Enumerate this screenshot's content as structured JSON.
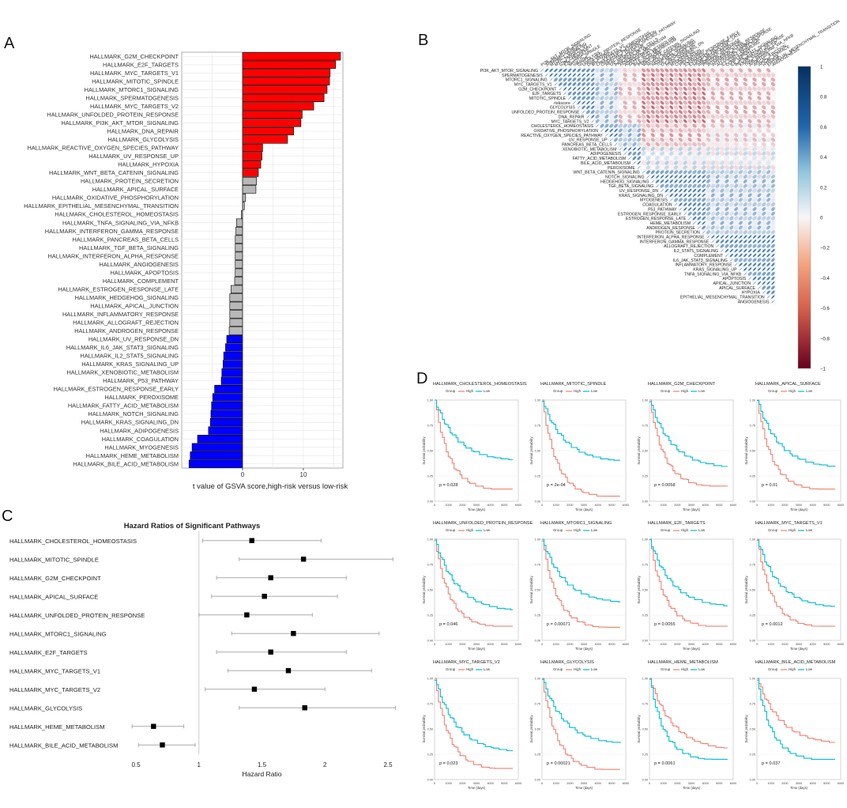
{
  "panel_letters": {
    "a": "A",
    "b": "B",
    "c": "C",
    "d": "D"
  },
  "colors": {
    "up": "#ff0000",
    "down": "#0000ff",
    "ns": "#b8b8b8",
    "grid": "#e6e6e6",
    "high": "#f08070",
    "low": "#00bcd4",
    "neg_corr": "#b2182b",
    "pos_corr": "#2166ac"
  },
  "chart_data": [
    {
      "id": "A",
      "type": "bar",
      "orientation": "horizontal",
      "xlabel": "t value of GSVA score,high-risk versus low-risk",
      "xlim": [
        -10,
        16.5
      ],
      "xticks": [
        0,
        10
      ],
      "categories": [
        "HALLMARK_G2M_CHECKPOINT",
        "HALLMARK_E2F_TARGETS",
        "HALLMARK_MYC_TARGETS_V1",
        "HALLMARK_MITOTIC_SPINDLE",
        "HALLMARK_MTORC1_SIGNALING",
        "HALLMARK_SPERMATOGENESIS",
        "HALLMARK_MYC_TARGETS_V2",
        "HALLMARK_UNFOLDED_PROTEIN_RESPONSE",
        "HALLMARK_PI3K_AKT_MTOR_SIGNALING",
        "HALLMARK_DNA_REPAIR",
        "HALLMARK_GLYCOLYSIS",
        "HALLMARK_REACTIVE_OXYGEN_SPECIES_PATHWAY",
        "HALLMARK_UV_RESPONSE_UP",
        "HALLMARK_HYPOXIA",
        "HALLMARK_WNT_BETA_CATENIN_SIGNALING",
        "HALLMARK_PROTEIN_SECRETION",
        "HALLMARK_APICAL_SURFACE",
        "HALLMARK_OXIDATIVE_PHOSPHORYLATION",
        "HALLMARK_EPITHELIAL_MESENCHYMAL_TRANSITION",
        "HALLMARK_CHOLESTEROL_HOMEOSTASIS",
        "HALLMARK_TNFA_SIGNALING_VIA_NFKB",
        "HALLMARK_INTERFERON_GAMMA_RESPONSE",
        "HALLMARK_PANCREAS_BETA_CELLS",
        "HALLMARK_TGF_BETA_SIGNALING",
        "HALLMARK_INTERFERON_ALPHA_RESPONSE",
        "HALLMARK_ANGIOGENESIS",
        "HALLMARK_APOPTOSIS",
        "HALLMARK_COMPLEMENT",
        "HALLMARK_ESTROGEN_RESPONSE_LATE",
        "HALLMARK_HEDGEHOG_SIGNALING",
        "HALLMARK_APICAL_JUNCTION",
        "HALLMARK_INFLAMMATORY_RESPONSE",
        "HALLMARK_ALLOGRAFT_REJECTION",
        "HALLMARK_ANDROGEN_RESPONSE",
        "HALLMARK_UV_RESPONSE_DN",
        "HALLMARK_IL6_JAK_STAT3_SIGNALING",
        "HALLMARK_IL2_STAT5_SIGNALING",
        "HALLMARK_KRAS_SIGNALING_UP",
        "HALLMARK_XENOBIOTIC_METABOLISM",
        "HALLMARK_P53_PATHWAY",
        "HALLMARK_ESTROGEN_RESPONSE_EARLY",
        "HALLMARK_PEROXISOME",
        "HALLMARK_FATTY_ACID_METABOLISM",
        "HALLMARK_NOTCH_SIGNALING",
        "HALLMARK_KRAS_SIGNALING_DN",
        "HALLMARK_ADIPOGENESIS",
        "HALLMARK_COAGULATION",
        "HALLMARK_MYOGENESIS",
        "HALLMARK_HEME_METABOLISM",
        "HALLMARK_BILE_ACID_METABOLISM"
      ],
      "values": [
        16.1,
        15.3,
        14.4,
        14.3,
        13.9,
        13.4,
        11.7,
        9.8,
        9.6,
        8.4,
        7.4,
        3.3,
        3.2,
        3.0,
        2.6,
        2.3,
        2.2,
        0.5,
        0.3,
        -0.2,
        -1.0,
        -1.1,
        -1.2,
        -1.2,
        -1.2,
        -1.2,
        -1.2,
        -1.3,
        -1.9,
        -2.1,
        -2.1,
        -2.1,
        -2.1,
        -2.2,
        -2.6,
        -2.8,
        -3.1,
        -3.2,
        -3.4,
        -3.5,
        -4.6,
        -4.9,
        -5.1,
        -5.2,
        -5.3,
        -5.6,
        -7.4,
        -8.3,
        -8.6,
        -8.8
      ],
      "groups": [
        "up",
        "up",
        "up",
        "up",
        "up",
        "up",
        "up",
        "up",
        "up",
        "up",
        "up",
        "up",
        "up",
        "up",
        "up",
        "ns",
        "ns",
        "ns",
        "ns",
        "ns",
        "ns",
        "ns",
        "ns",
        "ns",
        "ns",
        "ns",
        "ns",
        "ns",
        "ns",
        "ns",
        "ns",
        "ns",
        "ns",
        "ns",
        "down",
        "down",
        "down",
        "down",
        "down",
        "down",
        "down",
        "down",
        "down",
        "down",
        "down",
        "down",
        "down",
        "down",
        "down",
        "down"
      ]
    },
    {
      "id": "B",
      "type": "heatmap",
      "style": "correlation-ellipse-upper-triangle",
      "variables": [
        "PI3K_AKT_MTOR_SIGNALING",
        "SPERMATOGENESIS",
        "MTORC1_SIGNALING",
        "MYC_TARGETS_V1",
        "G2M_CHECKPOINT",
        "E2F_TARGETS",
        "MITOTIC_SPINDLE",
        "riskscore",
        "GLYCOLYSIS",
        "UNFOLDED_PROTEIN_RESPONSE",
        "DNA_REPAIR",
        "MYC_TARGETS_V2",
        "CHOLESTEROL_HOMEOSTASIS",
        "OXIDATIVE_PHOSPHORYLATION",
        "REACTIVE_OXYGEN_SPECIES_PATHWAY",
        "UV_RESPONSE_UP",
        "PANCREAS_BETA_CELLS",
        "XENOBIOTIC_METABOLISM",
        "ADIPOGENESIS",
        "FATTY_ACID_METABOLISM",
        "BILE_ACID_METABOLISM",
        "PEROXISOME",
        "WNT_BETA_CATENIN_SIGNALING",
        "NOTCH_SIGNALING",
        "HEDGEHOG_SIGNALING",
        "TGF_BETA_SIGNALING",
        "UV_RESPONSE_DN",
        "KRAS_SIGNALING_DN",
        "MYOGENESIS",
        "COAGULATION",
        "P53_PATHWAY",
        "ESTROGEN_RESPONSE_EARLY",
        "ESTROGEN_RESPONSE_LATE",
        "HEME_METABOLISM",
        "ANDROGEN_RESPONSE",
        "PROTEIN_SECRETION",
        "INTERFERON_ALPHA_RESPONSE",
        "INTERFERON_GAMMA_RESPONSE",
        "ALLOGRAFT_REJECTION",
        "IL2_STAT5_SIGNALING",
        "COMPLEMENT",
        "IL6_JAK_STAT3_SIGNALING",
        "INFLAMMATORY_RESPONSE",
        "KRAS_SIGNALING_UP",
        "TNFA_SIGNALING_VIA_NFKB",
        "APOPTOSIS",
        "APICAL_JUNCTION",
        "APICAL_SURFACE",
        "HYPOXIA",
        "EPITHELIAL_MESENCHYMAL_TRANSITION",
        "ANGIOGENESIS"
      ],
      "clusters": [
        0,
        0,
        0,
        0,
        0,
        0,
        0,
        0,
        0,
        0,
        0,
        0,
        1,
        1,
        1,
        1,
        1,
        2,
        2,
        2,
        2,
        2,
        3,
        3,
        3,
        3,
        3,
        3,
        3,
        3,
        3,
        3,
        3,
        3,
        3,
        3,
        4,
        4,
        4,
        4,
        4,
        4,
        4,
        4,
        4,
        4,
        4,
        4,
        4,
        4,
        4
      ],
      "colorbar_ticks": [
        "1",
        "0.8",
        "0.6",
        "0.4",
        "0.2",
        "0",
        "−0.2",
        "−0.4",
        "−0.6",
        "−0.8",
        "−1"
      ],
      "colorbar_range": [
        -1,
        1
      ]
    },
    {
      "id": "C",
      "type": "scatter",
      "subtype": "forest",
      "title": "Hazard Ratios of Significant Pathways",
      "xlabel": "Hazard Ratio",
      "xlim": [
        0.5,
        2.5
      ],
      "xticks": [
        "0.5",
        "1",
        "1.5",
        "2",
        "2.5"
      ],
      "reference": 1,
      "categories": [
        "HALLMARK_CHOLESTEROL_HOMEOSTASIS",
        "HALLMARK_MITOTIC_SPINDLE",
        "HALLMARK_G2M_CHECKPOINT",
        "HALLMARK_APICAL_SURFACE",
        "HALLMARK_UNFOLDED_PROTEIN_RESPONSE",
        "HALLMARK_MTORC1_SIGNALING",
        "HALLMARK_E2F_TARGETS",
        "HALLMARK_MYC_TARGETS_V1",
        "HALLMARK_MYC_TARGETS_V2",
        "HALLMARK_GLYCOLYSIS",
        "HALLMARK_HEME_METABOLISM",
        "HALLMARK_BILE_ACID_METABOLISM"
      ],
      "hr": [
        1.42,
        1.83,
        1.57,
        1.52,
        1.38,
        1.75,
        1.57,
        1.71,
        1.44,
        1.84,
        0.64,
        0.71
      ],
      "lower": [
        1.03,
        1.32,
        1.14,
        1.1,
        1.0,
        1.26,
        1.14,
        1.23,
        1.05,
        1.32,
        0.47,
        0.52
      ],
      "upper": [
        1.97,
        2.54,
        2.17,
        2.1,
        1.9,
        2.43,
        2.17,
        2.37,
        2.0,
        2.56,
        0.88,
        0.97
      ]
    },
    {
      "id": "D",
      "type": "line",
      "subtype": "kaplan-meier",
      "legend_title": "Group",
      "legend_high": "High",
      "legend_low": "Low",
      "xlabel": "Time (days)",
      "ylabel": "Survival probability",
      "xlim": [
        0,
        6000
      ],
      "xticks": [
        "0",
        "1000",
        "2000",
        "3000",
        "4000",
        "5000",
        "6000"
      ],
      "ylim": [
        0,
        1
      ],
      "yticks": [
        "0.00",
        "0.25",
        "0.50",
        "0.75",
        "1.00"
      ],
      "panels": [
        {
          "title": "HALLMARK_CHOLESTEROL_HOMEOSTASIS",
          "p": "p = 0.028",
          "high_end": 0.12,
          "low_end": 0.41
        },
        {
          "title": "HALLMARK_MITOTIC_SPINDLE",
          "p": "p = 2e-04",
          "high_end": 0.05,
          "low_end": 0.4
        },
        {
          "title": "HALLMARK_G2M_CHECKPOINT",
          "p": "p = 0.0058",
          "high_end": 0.15,
          "low_end": 0.34
        },
        {
          "title": "HALLMARK_APICAL_SURFACE",
          "p": "p = 0.01",
          "high_end": 0.12,
          "low_end": 0.34
        },
        {
          "title": "HALLMARK_UNFOLDED_PROTEIN_RESPONSE",
          "p": "p = 0.046",
          "high_end": 0.14,
          "low_end": 0.3
        },
        {
          "title": "HALLMARK_MTORC1_SIGNALING",
          "p": "p = 0.00071",
          "high_end": 0.13,
          "low_end": 0.38
        },
        {
          "title": "HALLMARK_E2F_TARGETS",
          "p": "p = 0.0055",
          "high_end": 0.14,
          "low_end": 0.34
        },
        {
          "title": "HALLMARK_MYC_TARGETS_V1",
          "p": "p = 0.0012",
          "high_end": 0.14,
          "low_end": 0.33
        },
        {
          "title": "HALLMARK_MYC_TARGETS_V2",
          "p": "p = 0.023",
          "high_end": 0.11,
          "low_end": 0.28
        },
        {
          "title": "HALLMARK_GLYCOLYSIS",
          "p": "p = 0.00021",
          "high_end": 0.1,
          "low_end": 0.36
        },
        {
          "title": "HALLMARK_HEME_METABOLISM",
          "p": "p = 0.0061",
          "high_end": 0.3,
          "low_end": 0.2
        },
        {
          "title": "HALLMARK_BILE_ACID_METABOLISM",
          "p": "p = 0.037",
          "high_end": 0.36,
          "low_end": 0.2
        }
      ]
    }
  ]
}
